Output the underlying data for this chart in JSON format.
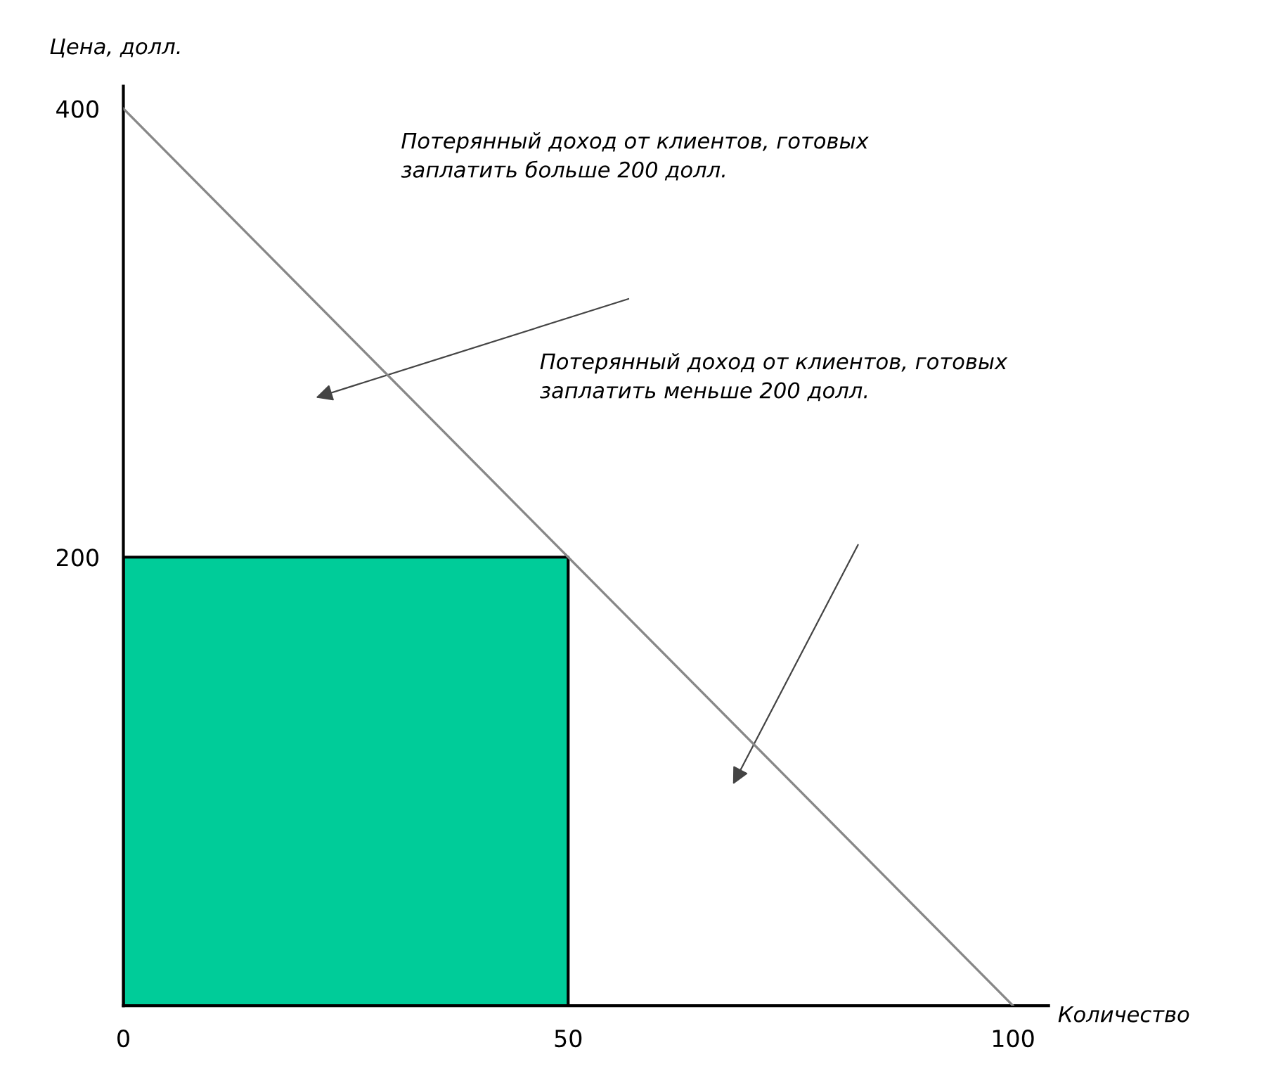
{
  "chart_data": {
    "type": "line",
    "xlabel": "Количество",
    "ylabel": "Цена, долл.",
    "series": [
      {
        "type": "area",
        "color": "#00cc99",
        "x": [
          0,
          50
        ],
        "values": [
          200,
          200
        ]
      },
      {
        "color": "#888888",
        "x": [
          0,
          100
        ],
        "values": [
          400,
          0
        ]
      }
    ],
    "xlim": [
      0,
      104
    ],
    "ylim": [
      0,
      410
    ],
    "xticks": [
      0,
      50,
      100
    ],
    "yticks": [
      200,
      400
    ],
    "grid": false,
    "legend": false,
    "annotations": [
      "Потерянный доход от клиентов, готовых\nзаплатить больше 200 долл.",
      "Потерянный доход от клиентов, готовых\nзаплатить меньше 200 долл."
    ]
  }
}
